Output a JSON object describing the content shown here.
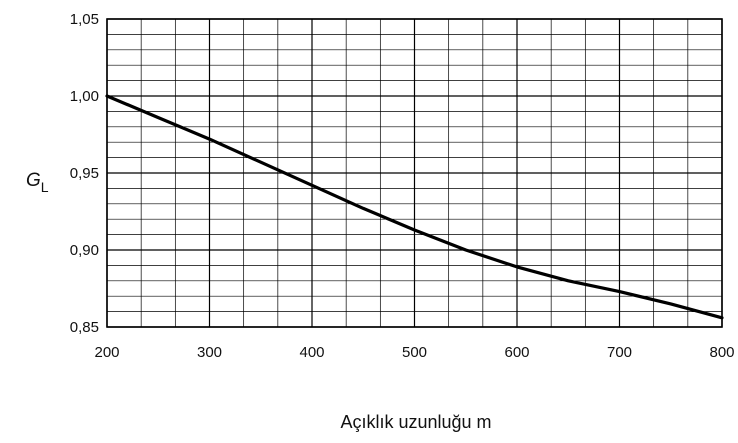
{
  "chart_data": {
    "type": "line",
    "title": "",
    "xlabel": "Açıklık uzunluğu m",
    "ylabel": {
      "main": "G",
      "sub": "L"
    },
    "xlim": [
      200,
      800
    ],
    "ylim": [
      0.85,
      1.05
    ],
    "x_ticks": [
      200,
      300,
      400,
      500,
      600,
      700,
      800
    ],
    "x_tick_labels": [
      "200",
      "300",
      "400",
      "500",
      "600",
      "700",
      "800"
    ],
    "y_ticks": [
      0.85,
      0.9,
      0.95,
      1.0,
      1.05
    ],
    "y_tick_labels": [
      "0,85",
      "0,90",
      "0,95",
      "1,00",
      "1,05"
    ],
    "grid": true,
    "minor_grid_per_major": {
      "x": 3,
      "y": 5
    },
    "colors": {
      "line": "#000000",
      "grid": "#000000",
      "background": "#ffffff"
    },
    "series": [
      {
        "x": [
          200,
          250,
          300,
          350,
          400,
          450,
          500,
          550,
          600,
          650,
          700,
          750,
          800
        ],
        "y": [
          1.0,
          0.986,
          0.972,
          0.957,
          0.942,
          0.927,
          0.913,
          0.9,
          0.889,
          0.88,
          0.873,
          0.865,
          0.856
        ]
      }
    ]
  }
}
